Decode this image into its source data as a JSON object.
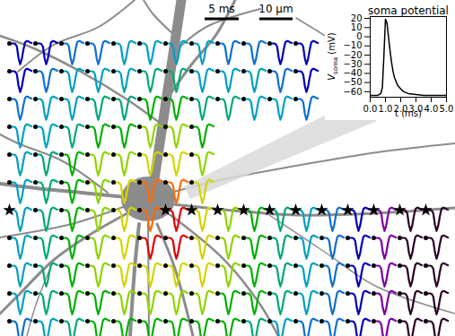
{
  "scale_bars": [
    {
      "label": "5 ms"
    },
    {
      "label": "10 μm"
    }
  ],
  "waveform_grid": {
    "colors": [
      "#e00000",
      "#ff6a00",
      "#d4d400",
      "#8fd400",
      "#00b000",
      "#00a87a",
      "#00a0c0",
      "#0f6fd0",
      "#0000b8",
      "#7a00a0",
      "#2a0028"
    ],
    "waveform": [
      0,
      0,
      -0.02,
      -0.15,
      -0.7,
      -1,
      -0.75,
      -0.3,
      0.05,
      0.12,
      0.1,
      0.05,
      0.02
    ],
    "levels": [
      [
        8,
        8,
        7,
        7,
        6,
        6,
        6,
        6,
        7,
        7,
        8,
        8,
        null,
        null,
        null,
        null,
        null
      ],
      [
        8,
        7,
        6,
        6,
        6,
        5,
        5,
        6,
        6,
        6,
        7,
        8,
        null,
        null,
        null,
        null,
        null
      ],
      [
        7,
        6,
        6,
        5,
        5,
        4,
        4,
        5,
        5,
        6,
        6,
        7,
        null,
        null,
        null,
        null,
        null
      ],
      [
        6,
        6,
        5,
        4,
        4,
        3,
        3,
        4,
        null,
        null,
        null,
        null,
        null,
        null,
        null,
        null,
        null
      ],
      [
        6,
        5,
        4,
        3,
        3,
        2,
        2,
        3,
        null,
        null,
        null,
        null,
        null,
        null,
        null,
        null,
        null
      ],
      [
        6,
        5,
        4,
        3,
        2,
        1,
        1,
        2,
        null,
        null,
        null,
        null,
        null,
        null,
        null,
        null,
        null
      ],
      [
        6,
        5,
        4,
        3,
        2,
        1,
        0,
        2,
        3,
        4,
        5,
        6,
        7,
        8,
        9,
        10,
        10
      ],
      [
        6,
        5,
        4,
        3,
        2,
        0,
        0,
        2,
        3,
        4,
        5,
        6,
        7,
        8,
        9,
        10,
        10
      ],
      [
        6,
        5,
        4,
        3,
        2,
        2,
        2,
        2,
        3,
        4,
        5,
        6,
        7,
        8,
        9,
        10,
        10
      ],
      [
        6,
        5,
        4,
        4,
        3,
        3,
        3,
        3,
        4,
        4,
        5,
        6,
        7,
        8,
        9,
        10,
        10
      ],
      [
        7,
        6,
        5,
        4,
        4,
        4,
        4,
        4,
        4,
        5,
        6,
        7,
        7,
        8,
        9,
        10,
        10
      ]
    ],
    "stars": [
      [
        6,
        0
      ],
      [
        6,
        6
      ],
      [
        6,
        7
      ],
      [
        6,
        8
      ],
      [
        6,
        9
      ],
      [
        6,
        10
      ],
      [
        6,
        11
      ],
      [
        6,
        12
      ],
      [
        6,
        13
      ],
      [
        6,
        14
      ],
      [
        6,
        15
      ],
      [
        6,
        16
      ]
    ]
  },
  "chart_data": {
    "type": "line",
    "title": "soma potential",
    "x_label": "t (ms)",
    "y_label": "Vsoma (mV)",
    "x": [
      0,
      0.5,
      0.7,
      0.8,
      0.9,
      1.0,
      1.1,
      1.2,
      1.3,
      1.4,
      1.5,
      1.6,
      1.8,
      2.0,
      2.2,
      2.5,
      3.0,
      3.5,
      4,
      4.5,
      5
    ],
    "values": [
      -64,
      -64,
      -62,
      -55,
      -20,
      19,
      15,
      0,
      -15,
      -28,
      -38,
      -45,
      -53,
      -57,
      -60,
      -62,
      -63,
      -64,
      -64,
      -64,
      -64
    ],
    "color": "#000000",
    "xlim": [
      0,
      5
    ],
    "xticks": [
      0,
      1,
      2,
      3,
      4,
      5
    ],
    "ylim": [
      -66,
      22
    ],
    "yticks": [
      -60,
      -50,
      -40,
      -30,
      -20,
      -10,
      0,
      10,
      20
    ]
  }
}
